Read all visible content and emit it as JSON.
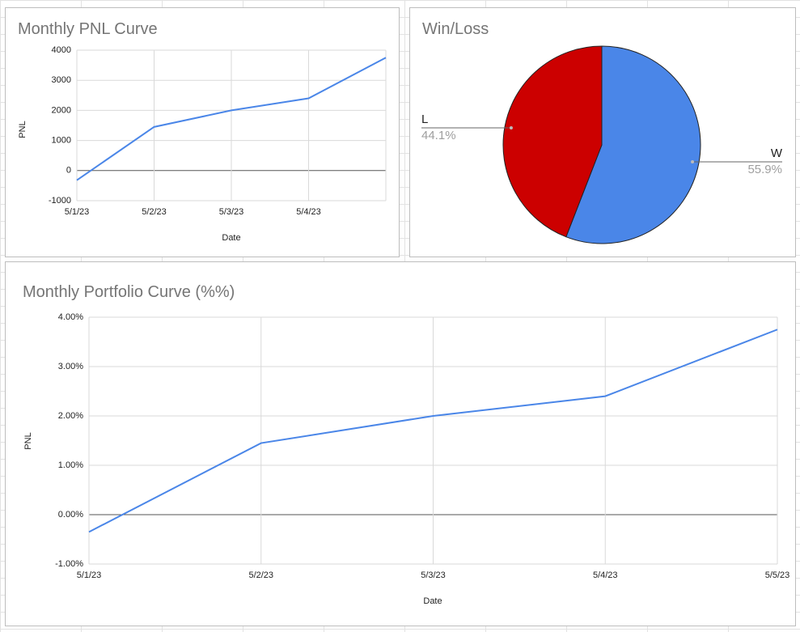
{
  "chart_data": [
    {
      "type": "line",
      "title": "Monthly PNL Curve",
      "x_label": "Date",
      "y_label": "PNL",
      "categories": [
        "5/1/23",
        "5/2/23",
        "5/3/23",
        "5/4/23",
        null
      ],
      "values": [
        -320,
        1450,
        2000,
        2400,
        3750
      ],
      "color": "#4a86e8",
      "ylim": [
        -1000,
        4000
      ],
      "yticks": [
        -1000,
        0,
        1000,
        2000,
        3000,
        4000
      ],
      "grid": true
    },
    {
      "type": "pie",
      "title": "Win/Loss",
      "categories": [
        "W",
        "L"
      ],
      "values": [
        55.9,
        44.1
      ],
      "value_labels": [
        "55.9%",
        "44.1%"
      ],
      "colors": [
        "#4a86e8",
        "#cc0000"
      ]
    },
    {
      "type": "line",
      "title": "Monthly Portfolio Curve (%%)",
      "x_label": "Date",
      "y_label": "PNL",
      "categories": [
        "5/1/23",
        "5/2/23",
        "5/3/23",
        "5/4/23",
        "5/5/23"
      ],
      "values": [
        -0.35,
        1.45,
        2.0,
        2.4,
        3.75
      ],
      "color": "#4a86e8",
      "ylim": [
        -1,
        4
      ],
      "yticks": [
        {
          "value": -1,
          "label": "-1.00%"
        },
        {
          "value": 0,
          "label": "0.00%"
        },
        {
          "value": 1,
          "label": "1.00%"
        },
        {
          "value": 2,
          "label": "2.00%"
        },
        {
          "value": 3,
          "label": "3.00%"
        },
        {
          "value": 4,
          "label": "4.00%"
        }
      ],
      "grid": true
    }
  ]
}
